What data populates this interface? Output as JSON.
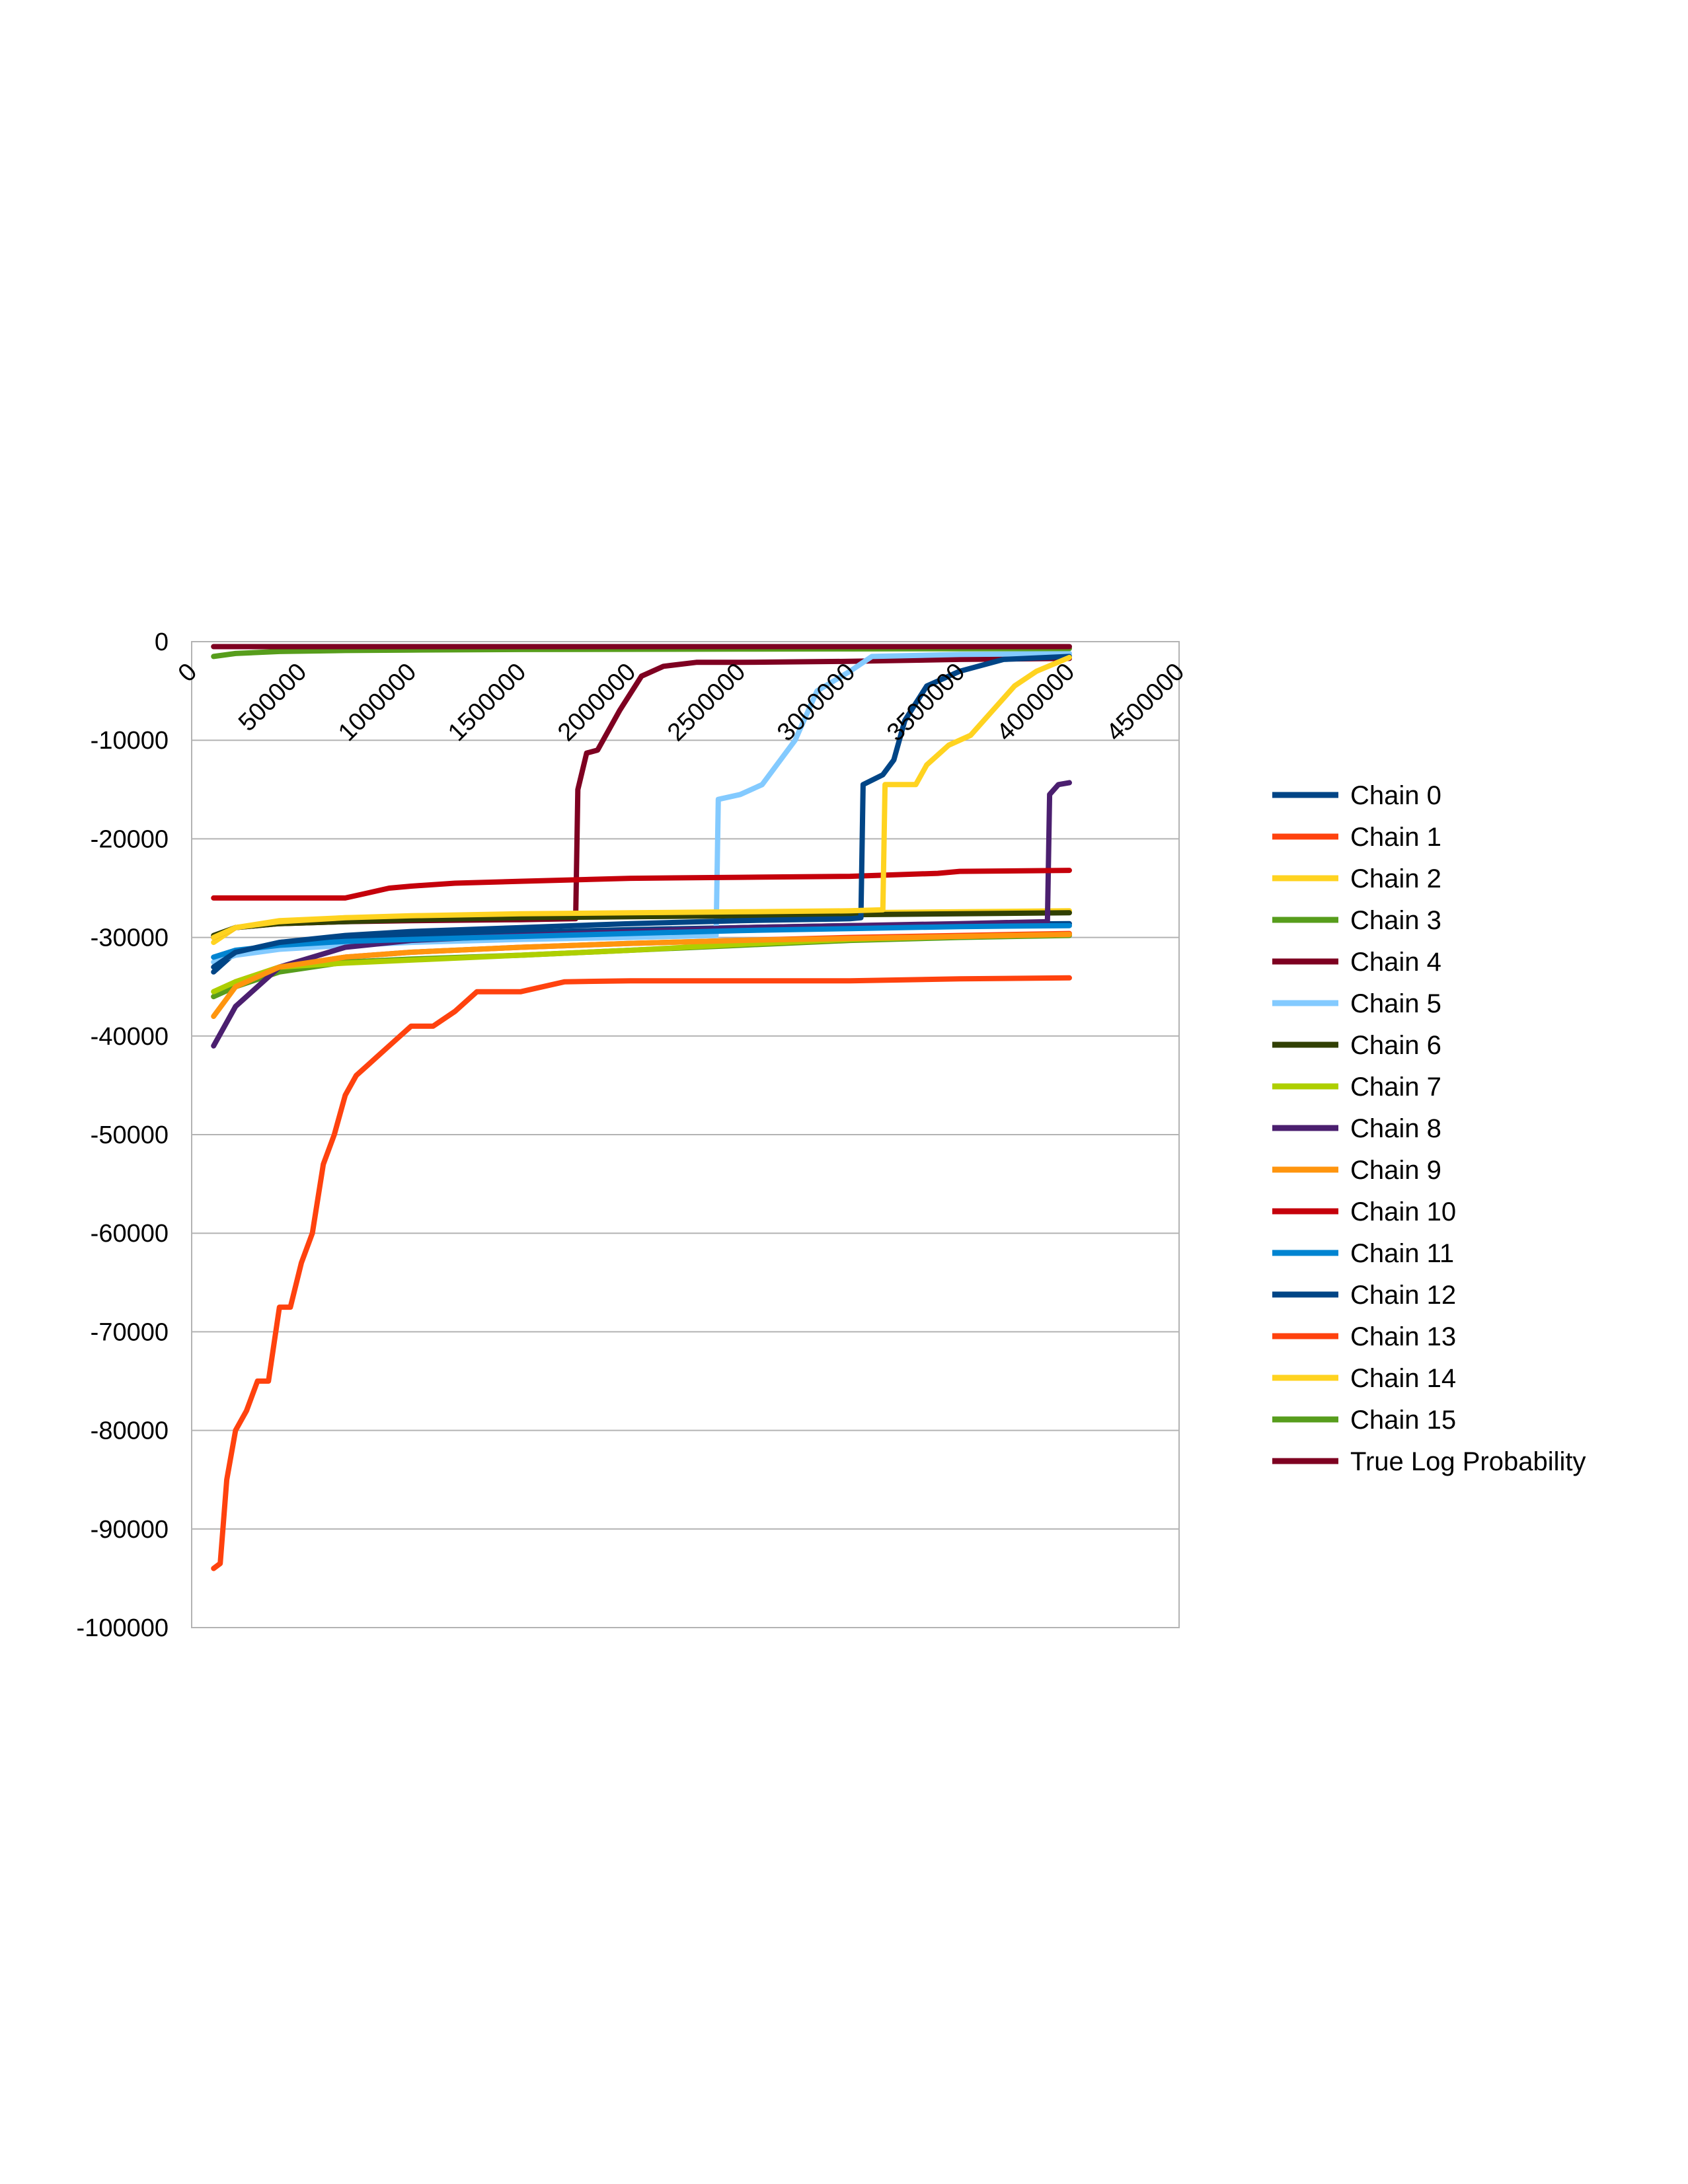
{
  "chart_data": {
    "type": "line",
    "title": "",
    "xlabel": "",
    "ylabel": "",
    "xlim": [
      0,
      4500000
    ],
    "ylim": [
      -100000,
      0
    ],
    "x_ticks": [
      0,
      500000,
      1000000,
      1500000,
      2000000,
      2500000,
      3000000,
      3500000,
      4000000,
      4500000
    ],
    "x_tick_labels": [
      "0",
      "500000",
      "1000000",
      "1500000",
      "2000000",
      "2500000",
      "3000000",
      "3500000",
      "4000000",
      "4500000"
    ],
    "y_ticks": [
      0,
      -10000,
      -20000,
      -30000,
      -40000,
      -50000,
      -60000,
      -70000,
      -80000,
      -90000,
      -100000
    ],
    "y_tick_labels": [
      "0",
      "-10000",
      "-20000",
      "-30000",
      "-40000",
      "-50000",
      "-60000",
      "-70000",
      "-80000",
      "-90000",
      "-100000"
    ],
    "x_axis_position": "top",
    "grid": "horizontal",
    "legend_position": "right",
    "series": [
      {
        "name": "Chain 0",
        "color": "#004586",
        "x": [
          100000,
          200000,
          400000,
          700000,
          1000000,
          1500000,
          2000000,
          2500000,
          3000000,
          3500000,
          4000000
        ],
        "y": [
          -33500,
          -31500,
          -30500,
          -30000,
          -29800,
          -29500,
          -29200,
          -29000,
          -28800,
          -28700,
          -28600
        ]
      },
      {
        "name": "Chain 1",
        "color": "#ff420e",
        "x": [
          100000,
          200000,
          400000,
          700000,
          1000000,
          1500000,
          2000000,
          2500000,
          3000000,
          3500000,
          4000000
        ],
        "y": [
          -36000,
          -34500,
          -33000,
          -32000,
          -31500,
          -31000,
          -30600,
          -30300,
          -30000,
          -29800,
          -29600
        ]
      },
      {
        "name": "Chain 2",
        "color": "#ffd320",
        "x": [
          100000,
          200000,
          400000,
          700000,
          1000000,
          1500000,
          2000000,
          2500000,
          3000000,
          3500000,
          4000000
        ],
        "y": [
          -30500,
          -29000,
          -28300,
          -28000,
          -27900,
          -27800,
          -27700,
          -27600,
          -27500,
          -27400,
          -27300
        ]
      },
      {
        "name": "Chain 3",
        "color": "#579d1c",
        "x": [
          100000,
          200000,
          400000,
          700000,
          1000000,
          1500000,
          2000000,
          2500000,
          3000000,
          3500000,
          4000000
        ],
        "y": [
          -36000,
          -35000,
          -33500,
          -32500,
          -32200,
          -31800,
          -31300,
          -30800,
          -30300,
          -30000,
          -29800
        ]
      },
      {
        "name": "Chain 4",
        "color": "#7e0021",
        "x": [
          100000,
          200000,
          400000,
          700000,
          1000000,
          1500000,
          1750000,
          1760000,
          1800000,
          1850000,
          1950000,
          2050000,
          2150000,
          2300000,
          2500000,
          3000000,
          3500000,
          4000000
        ],
        "y": [
          -30000,
          -29000,
          -28600,
          -28400,
          -28300,
          -28200,
          -28100,
          -15000,
          -11300,
          -11000,
          -7000,
          -3500,
          -2500,
          -2100,
          -2100,
          -2000,
          -1800,
          -1700
        ]
      },
      {
        "name": "Chain 5",
        "color": "#83caff",
        "x": [
          100000,
          200000,
          400000,
          700000,
          1000000,
          1500000,
          2000000,
          2390000,
          2400000,
          2500000,
          2600000,
          2750000,
          2850000,
          3000000,
          3100000,
          3500000,
          4000000
        ],
        "y": [
          -32500,
          -31800,
          -31200,
          -30800,
          -30500,
          -30200,
          -30000,
          -29800,
          -16000,
          -15500,
          -14500,
          -10000,
          -5000,
          -3000,
          -1500,
          -1300,
          -1200
        ]
      },
      {
        "name": "Chain 6",
        "color": "#314004",
        "x": [
          100000,
          200000,
          400000,
          700000,
          1000000,
          1500000,
          2000000,
          2500000,
          3000000,
          3500000,
          4000000
        ],
        "y": [
          -29800,
          -29000,
          -28600,
          -28400,
          -28200,
          -28000,
          -27900,
          -27800,
          -27700,
          -27600,
          -27500
        ]
      },
      {
        "name": "Chain 7",
        "color": "#aecf00",
        "x": [
          100000,
          200000,
          400000,
          700000,
          1000000,
          1500000,
          2000000,
          2500000,
          3000000,
          3500000,
          4000000
        ],
        "y": [
          -35500,
          -34500,
          -33000,
          -32600,
          -32300,
          -31800,
          -31300,
          -30700,
          -30200,
          -29900,
          -29700
        ]
      },
      {
        "name": "Chain 8",
        "color": "#4b1f6f",
        "x": [
          100000,
          200000,
          400000,
          700000,
          1000000,
          1500000,
          2000000,
          2500000,
          3000000,
          3500000,
          3900000,
          3910000,
          3950000,
          4000000
        ],
        "y": [
          -41000,
          -37000,
          -33000,
          -31000,
          -30300,
          -29800,
          -29400,
          -29000,
          -28800,
          -28600,
          -28400,
          -15500,
          -14500,
          -14300
        ]
      },
      {
        "name": "Chain 9",
        "color": "#ff950e",
        "x": [
          100000,
          200000,
          400000,
          700000,
          1000000,
          1500000,
          2000000,
          2500000,
          3000000,
          3500000,
          4000000
        ],
        "y": [
          -38000,
          -35000,
          -33000,
          -32000,
          -31500,
          -31000,
          -30600,
          -30300,
          -30100,
          -29900,
          -29700
        ]
      },
      {
        "name": "Chain 10",
        "color": "#c5000b",
        "x": [
          100000,
          300000,
          700000,
          800000,
          900000,
          1000000,
          1200000,
          1500000,
          2000000,
          2500000,
          3000000,
          3400000,
          3500000,
          4000000
        ],
        "y": [
          -26000,
          -26000,
          -26000,
          -25500,
          -25000,
          -24800,
          -24500,
          -24300,
          -24000,
          -23900,
          -23800,
          -23500,
          -23300,
          -23200
        ]
      },
      {
        "name": "Chain 11",
        "color": "#0084d1",
        "x": [
          100000,
          200000,
          400000,
          700000,
          1000000,
          1500000,
          2000000,
          2500000,
          3000000,
          3500000,
          4000000
        ],
        "y": [
          -32000,
          -31300,
          -30800,
          -30400,
          -30200,
          -29900,
          -29600,
          -29300,
          -29100,
          -28900,
          -28800
        ]
      },
      {
        "name": "Chain 12",
        "color": "#004586",
        "x": [
          100000,
          200000,
          400000,
          700000,
          1000000,
          1500000,
          2000000,
          2500000,
          3000000,
          3050000,
          3060000,
          3150000,
          3200000,
          3250000,
          3350000,
          3500000,
          3700000,
          4000000
        ],
        "y": [
          -33000,
          -31500,
          -30500,
          -29800,
          -29400,
          -29000,
          -28600,
          -28300,
          -28100,
          -28000,
          -14500,
          -13500,
          -12000,
          -8000,
          -4500,
          -3000,
          -1800,
          -1500
        ]
      },
      {
        "name": "Chain 13",
        "color": "#ff420e",
        "x": [
          100000,
          130000,
          160000,
          200000,
          250000,
          300000,
          350000,
          400000,
          450000,
          500000,
          550000,
          600000,
          650000,
          700000,
          750000,
          800000,
          850000,
          900000,
          1000000,
          1100000,
          1200000,
          1300000,
          1500000,
          1700000,
          2000000,
          2500000,
          3000000,
          3500000,
          4000000
        ],
        "y": [
          -94000,
          -93500,
          -85000,
          -80000,
          -78000,
          -75000,
          -75000,
          -67500,
          -67500,
          -63000,
          -60000,
          -53000,
          -50000,
          -46000,
          -44000,
          -43000,
          -42000,
          -41000,
          -39000,
          -39000,
          -37500,
          -35500,
          -35500,
          -34500,
          -34400,
          -34400,
          -34400,
          -34200,
          -34100
        ]
      },
      {
        "name": "Chain 14",
        "color": "#ffd320",
        "x": [
          100000,
          200000,
          400000,
          700000,
          1000000,
          1500000,
          2000000,
          2500000,
          3000000,
          3150000,
          3160000,
          3300000,
          3350000,
          3450000,
          3550000,
          3650000,
          3750000,
          3850000,
          4000000
        ],
        "y": [
          -30000,
          -29000,
          -28400,
          -28000,
          -27800,
          -27600,
          -27500,
          -27400,
          -27300,
          -27200,
          -14500,
          -14500,
          -12500,
          -10500,
          -9500,
          -7000,
          -4500,
          -3000,
          -1600
        ]
      },
      {
        "name": "Chain 15",
        "color": "#579d1c",
        "x": [
          100000,
          200000,
          400000,
          700000,
          1000000,
          1500000,
          2000000,
          2500000,
          3000000,
          3500000,
          4000000
        ],
        "y": [
          -1500,
          -1200,
          -1000,
          -900,
          -850,
          -800,
          -780,
          -760,
          -740,
          -720,
          -700
        ]
      },
      {
        "name": "True Log Probability",
        "color": "#7e0021",
        "x": [
          100000,
          4000000
        ],
        "y": [
          -500,
          -500
        ]
      }
    ]
  }
}
